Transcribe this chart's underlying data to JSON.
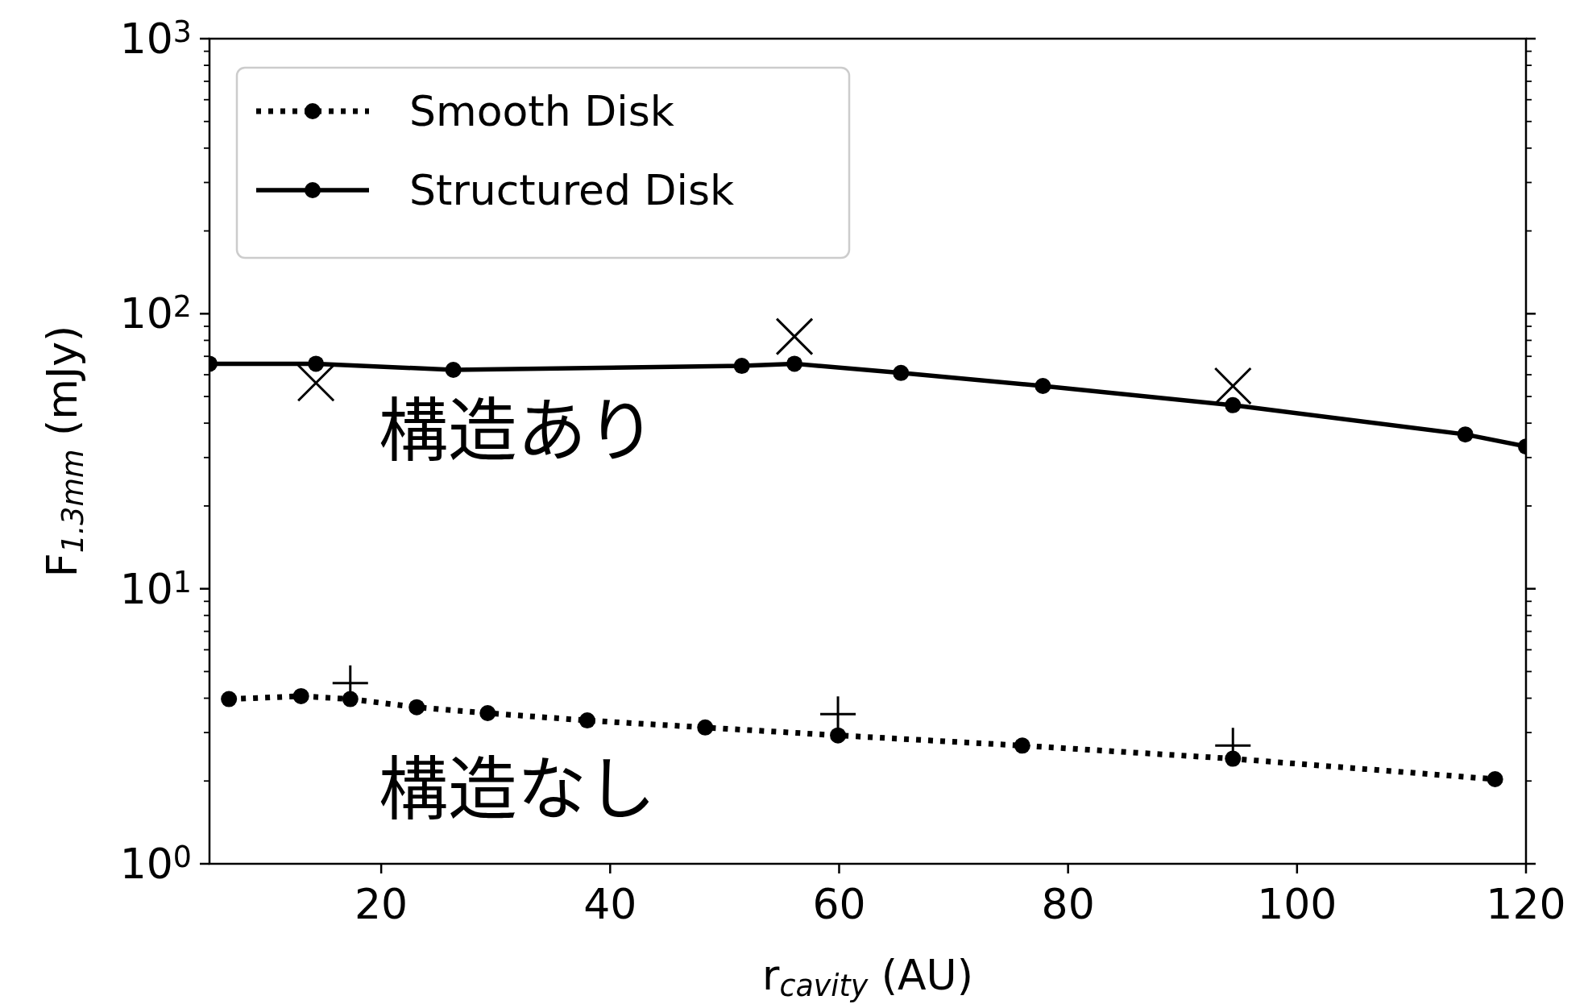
{
  "chart_data": {
    "type": "line",
    "xlabel": "r$_{cavity}$ (AU)",
    "ylabel": "F$_{1.3mm}$ (mJy)",
    "xlim": [
      5,
      120
    ],
    "xticks": [
      20,
      40,
      60,
      80,
      100,
      120
    ],
    "ylim": [
      1,
      1000
    ],
    "yticks": [
      {
        "value": 1,
        "label": "10$^{0}$"
      },
      {
        "value": 10,
        "label": "10$^{1}$"
      },
      {
        "value": 100,
        "label": "10$^{2}$"
      },
      {
        "value": 1000,
        "label": "10$^{3}$"
      }
    ],
    "log": "y",
    "grid": false,
    "legend": "top left",
    "series": [
      {
        "name": "Smooth Disk",
        "color": "#000000",
        "marker": "circle",
        "line_style": "dotted",
        "x": [
          6.7,
          13.0,
          17.3,
          23.1,
          29.3,
          38.0,
          48.3,
          59.9,
          76.0,
          94.4,
          117.3
        ],
        "values": [
          3.97,
          4.07,
          3.97,
          3.71,
          3.53,
          3.32,
          3.13,
          2.93,
          2.69,
          2.41,
          2.03
        ]
      },
      {
        "name": "Structured Disk",
        "color": "#000000",
        "marker": "circle",
        "line_style": "solid",
        "x": [
          5,
          14.3,
          26.3,
          51.5,
          56.1,
          65.4,
          77.8,
          94.4,
          114.7,
          120
        ],
        "values": [
          65.8,
          65.8,
          62.5,
          64.6,
          65.8,
          60.9,
          54.6,
          46.5,
          36.4,
          32.9
        ]
      },
      {
        "type": "scatter",
        "color": "#000000",
        "marker": "cross",
        "x": [
          14.3,
          56.1,
          94.4
        ],
        "values": [
          56.0,
          82.6,
          54.6
        ]
      },
      {
        "type": "scatter",
        "color": "#000000",
        "marker": "cross",
        "x": [
          17.3,
          59.9,
          94.4
        ],
        "values": [
          4.54,
          3.5,
          2.69
        ]
      }
    ],
    "annotations": [
      "構造あり",
      "構造なし"
    ]
  }
}
